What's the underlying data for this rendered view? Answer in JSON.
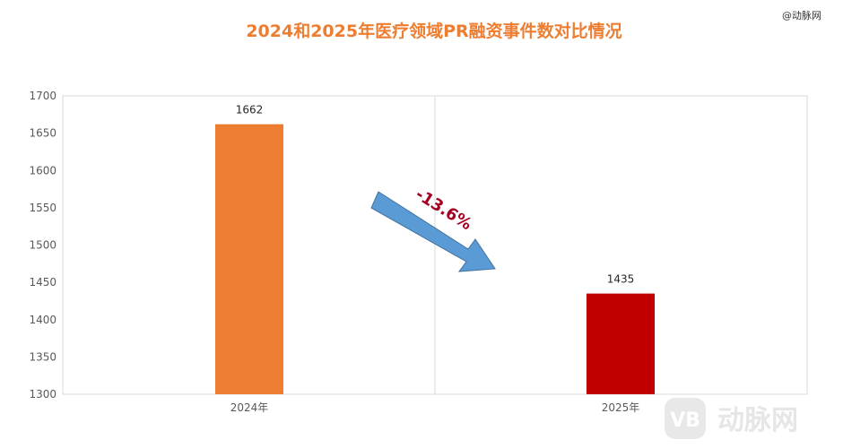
{
  "chart_data": {
    "type": "bar",
    "title": "2024和2025年医疗领域PR融资事件数对比情况",
    "categories": [
      "2024年",
      "2025年"
    ],
    "series": [
      {
        "values": [
          1662,
          1435
        ],
        "colors": [
          "#ed7d31",
          "#c00000"
        ]
      }
    ],
    "data_labels": [
      "1662",
      "1435"
    ],
    "ylim": [
      1300,
      1700
    ],
    "yticks": [
      1300,
      1350,
      1400,
      1450,
      1500,
      1550,
      1600,
      1650,
      1700
    ],
    "grid": false,
    "legend": "none",
    "annotation": {
      "text": "-13.6%",
      "arrow_color": "#5b9bd5"
    }
  },
  "watermarks": {
    "top_right": "@动脉网",
    "logo_text": "动脉网",
    "logo_icon": "vb-logo-icon"
  }
}
